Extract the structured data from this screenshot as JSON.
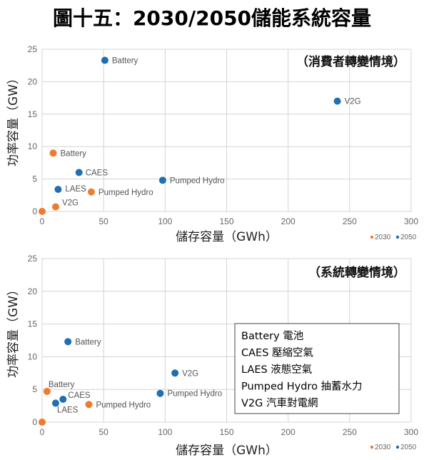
{
  "figure_title": "圖十五：2030/2050儲能系統容量",
  "colors": {
    "y2030": "#ef7b2e",
    "y2050": "#1f6fb2",
    "grid": "#d4d4d4"
  },
  "chart_data": [
    {
      "type": "scatter",
      "subtitle": "（消費者轉變情境）",
      "xlabel": "儲存容量（GWh）",
      "ylabel": "功率容量（GW）",
      "xlim": [
        0,
        300
      ],
      "ylim": [
        0,
        25
      ],
      "xticks": [
        "0",
        "50",
        "100",
        "150",
        "200",
        "250",
        "300"
      ],
      "yticks": [
        "0",
        "5",
        "10",
        "15",
        "20",
        "25"
      ],
      "grid": true,
      "legend": {
        "position": "bottom-right",
        "entries": [
          "2030",
          "2050"
        ]
      },
      "series": [
        {
          "name": "2030",
          "points": [
            {
              "label": "",
              "x": 0,
              "y": 0
            },
            {
              "label": "Battery",
              "x": 9,
              "y": 9
            },
            {
              "label": "Pumped Hydro",
              "x": 40,
              "y": 3
            },
            {
              "label": "V2G",
              "x": 11,
              "y": 0.7
            }
          ]
        },
        {
          "name": "2050",
          "points": [
            {
              "label": "Battery",
              "x": 51,
              "y": 23.3
            },
            {
              "label": "V2G",
              "x": 240,
              "y": 17
            },
            {
              "label": "CAES",
              "x": 30,
              "y": 6
            },
            {
              "label": "Pumped Hydro",
              "x": 98,
              "y": 4.8
            },
            {
              "label": "LAES",
              "x": 13,
              "y": 3.4
            }
          ]
        }
      ]
    },
    {
      "type": "scatter",
      "subtitle": "（系統轉變情境）",
      "xlabel": "儲存容量（GWh）",
      "ylabel": "功率容量（GW）",
      "xlim": [
        0,
        300
      ],
      "ylim": [
        0,
        25
      ],
      "xticks": [
        "0",
        "50",
        "100",
        "150",
        "200",
        "250",
        "300"
      ],
      "yticks": [
        "0",
        "5",
        "10",
        "15",
        "20",
        "25"
      ],
      "grid": true,
      "legend": {
        "position": "bottom-right",
        "entries": [
          "2030",
          "2050"
        ]
      },
      "series": [
        {
          "name": "2030",
          "points": [
            {
              "label": "",
              "x": 0,
              "y": 0
            },
            {
              "label": "Battery",
              "x": 4,
              "y": 4.7
            },
            {
              "label": "Pumped Hydro",
              "x": 38,
              "y": 2.7
            }
          ]
        },
        {
          "name": "2050",
          "points": [
            {
              "label": "Battery",
              "x": 21,
              "y": 12.3
            },
            {
              "label": "V2G",
              "x": 108,
              "y": 7.5
            },
            {
              "label": "CAES",
              "x": 17,
              "y": 3.5
            },
            {
              "label": "LAES",
              "x": 11,
              "y": 2.9
            },
            {
              "label": "Pumped Hydro",
              "x": 96,
              "y": 4.4
            }
          ]
        }
      ],
      "glossary": [
        "Battery 電池",
        "CAES 壓縮空氣",
        "LAES 液態空氣",
        "Pumped Hydro 抽蓄水力",
        "V2G 汽車對電網"
      ]
    }
  ]
}
